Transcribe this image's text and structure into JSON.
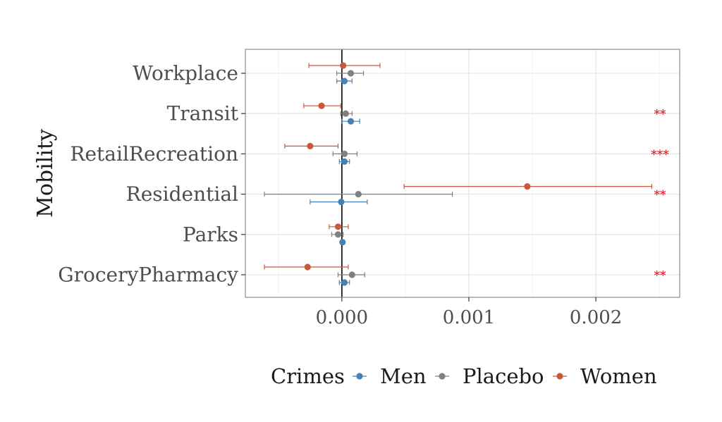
{
  "chart_data": {
    "type": "scatter",
    "subtype": "coefficient-plot-with-error-bars",
    "title": "",
    "xlabel": "",
    "ylabel": "Mobility",
    "categories": [
      "Workplace",
      "Transit",
      "RetailRecreation",
      "Residential",
      "Parks",
      "GroceryPharmacy"
    ],
    "xlim": [
      -0.00076,
      0.00266
    ],
    "x_ticks": [
      0.0,
      0.001,
      0.002
    ],
    "x_tick_labels": [
      "0.000",
      "0.001",
      "0.002"
    ],
    "zero_line": 0,
    "grid": true,
    "legend": {
      "title": "Crimes",
      "position": "bottom",
      "entries": [
        "Men",
        "Placebo",
        "Women"
      ]
    },
    "series": [
      {
        "name": "Men",
        "color": "#4682b4",
        "values": [
          2e-05,
          7e-05,
          2e-05,
          -5e-06,
          5e-06,
          2e-05
        ],
        "lower": [
          -4e-05,
          0.0,
          -2e-05,
          -0.00025,
          -1e-05,
          -2e-05
        ],
        "upper": [
          8e-05,
          0.00014,
          6e-05,
          0.0002,
          2e-05,
          6e-05
        ]
      },
      {
        "name": "Placebo",
        "color": "#808080",
        "values": [
          7e-05,
          3e-05,
          2e-05,
          0.00013,
          -3e-05,
          8e-05
        ],
        "lower": [
          -4e-05,
          -1e-05,
          -7e-05,
          -0.00061,
          -8e-05,
          -3e-05
        ],
        "upper": [
          0.00017,
          8e-05,
          0.00012,
          0.00087,
          1e-05,
          0.00018
        ]
      },
      {
        "name": "Women",
        "color": "#c85a3c",
        "values": [
          1e-05,
          -0.00016,
          -0.00025,
          0.00146,
          -3e-05,
          -0.00027
        ],
        "lower": [
          -0.00026,
          -0.0003,
          -0.00045,
          0.00049,
          -0.0001,
          -0.00061
        ],
        "upper": [
          0.0003,
          -1e-05,
          -3e-05,
          0.00244,
          5e-05,
          5e-05
        ]
      }
    ],
    "significance": [
      "",
      "**",
      "***",
      "**",
      "",
      "**"
    ]
  }
}
